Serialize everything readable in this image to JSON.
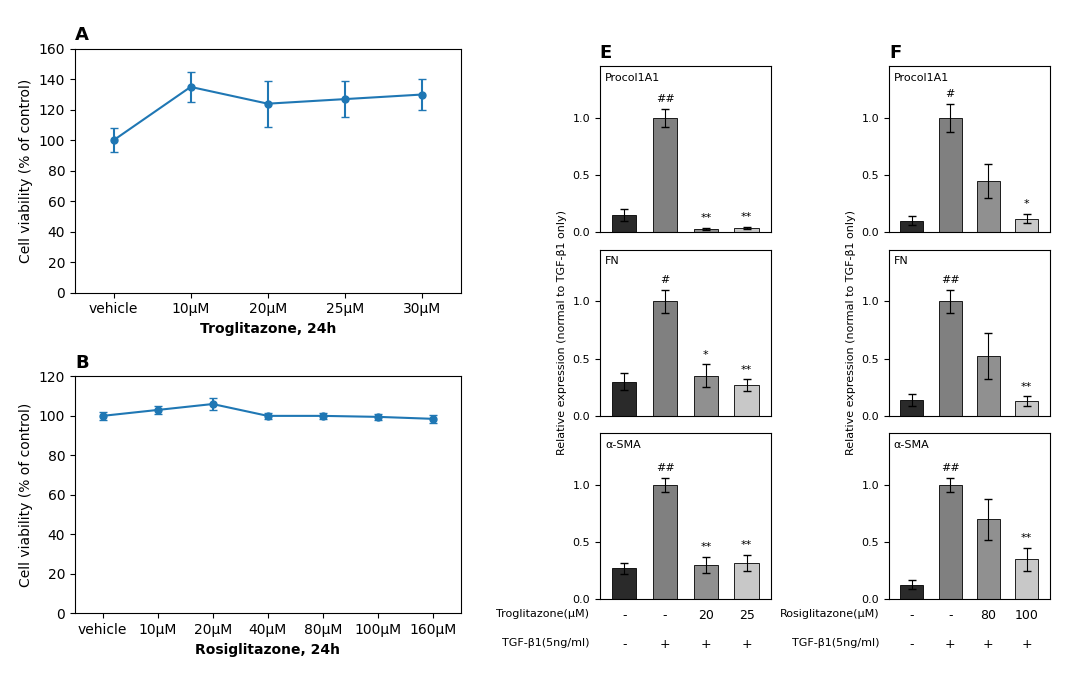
{
  "chart_data": [
    {
      "type": "line",
      "title": "A",
      "categories": [
        "vehicle",
        "10μM",
        "20μM",
        "25μM",
        "30μM"
      ],
      "values": [
        100,
        135,
        124,
        127,
        130
      ],
      "errors": [
        8,
        10,
        15,
        12,
        10
      ],
      "xlabel": "Troglitazone, 24h",
      "ylabel": "Cell viability (% of control)",
      "ylim": [
        0,
        160
      ],
      "yticks": [
        0,
        20,
        40,
        60,
        80,
        100,
        120,
        140,
        160
      ],
      "marker": "o",
      "line_style": "solid"
    },
    {
      "type": "line",
      "title": "B",
      "categories": [
        "vehicle",
        "10μM",
        "20μM",
        "40μM",
        "80μM",
        "100μM",
        "160μM"
      ],
      "values": [
        100,
        103,
        106,
        100,
        100,
        99.5,
        98.5
      ],
      "errors": [
        2,
        2,
        3,
        1.5,
        1.5,
        1.5,
        2
      ],
      "xlabel": "Rosiglitazone, 24h",
      "ylabel": "Cell viability (% of control)",
      "ylim": [
        0,
        120
      ],
      "yticks": [
        0,
        20,
        40,
        60,
        80,
        100,
        120
      ],
      "marker": "o",
      "line_style": "solid"
    },
    {
      "type": "bar",
      "title": "E",
      "subtitle": "Procol1A1",
      "categories": [
        null,
        null,
        null,
        null
      ],
      "values": [
        0.15,
        1.0,
        0.03,
        0.04
      ],
      "errors": [
        0.05,
        0.08,
        0.01,
        0.01
      ],
      "annotations": [
        null,
        "##",
        "**",
        "**"
      ],
      "colors": [
        "#2a2a2a",
        "#808080",
        "#909090",
        "#c8c8c8"
      ],
      "ylim": [
        0,
        1.45
      ],
      "yticks": [
        {
          "value": 0.0,
          "label": "0.0"
        },
        {
          "value": 0.5,
          "label": "0.5"
        },
        {
          "value": 1.0,
          "label": "1.0"
        }
      ]
    },
    {
      "type": "bar",
      "subtitle": "FN",
      "ylabel": "Relative expression (normal to TGF-β1 only)",
      "categories": [
        null,
        null,
        null,
        null
      ],
      "values": [
        0.3,
        1.0,
        0.35,
        0.27
      ],
      "errors": [
        0.07,
        0.1,
        0.1,
        0.05
      ],
      "annotations": [
        null,
        "#",
        "*",
        "**"
      ],
      "colors": [
        "#2a2a2a",
        "#808080",
        "#909090",
        "#c8c8c8"
      ],
      "ylim": [
        0,
        1.45
      ],
      "yticks": [
        {
          "value": 0.0,
          "label": "0.0"
        },
        {
          "value": 0.5,
          "label": "0.5"
        },
        {
          "value": 1.0,
          "label": "1.0"
        }
      ]
    },
    {
      "type": "bar",
      "subtitle": "α-SMA",
      "categories": [
        null,
        null,
        null,
        null
      ],
      "category_rows": [
        {
          "name": "Troglitazone(μM)",
          "labels": [
            "-",
            "-",
            "20",
            "25"
          ]
        },
        {
          "name": "TGF-β1(5ng/ml)",
          "labels": [
            "-",
            "+",
            "+",
            "+"
          ]
        }
      ],
      "values": [
        0.27,
        1.0,
        0.3,
        0.32
      ],
      "errors": [
        0.05,
        0.06,
        0.07,
        0.07
      ],
      "annotations": [
        null,
        "##",
        "**",
        "**"
      ],
      "colors": [
        "#2a2a2a",
        "#808080",
        "#909090",
        "#c8c8c8"
      ],
      "ylim": [
        0,
        1.45
      ],
      "yticks": [
        {
          "value": 0.0,
          "label": "0.0"
        },
        {
          "value": 0.5,
          "label": "0.5"
        },
        {
          "value": 1.0,
          "label": "1.0"
        }
      ]
    },
    {
      "type": "bar",
      "title": "F",
      "subtitle": "Procol1A1",
      "categories": [
        null,
        null,
        null,
        null
      ],
      "values": [
        0.1,
        1.0,
        0.45,
        0.12
      ],
      "errors": [
        0.04,
        0.12,
        0.15,
        0.04
      ],
      "annotations": [
        null,
        "#",
        null,
        "*"
      ],
      "colors": [
        "#2a2a2a",
        "#808080",
        "#909090",
        "#c8c8c8"
      ],
      "ylim": [
        0,
        1.45
      ],
      "yticks": [
        {
          "value": 0.0,
          "label": "0.0"
        },
        {
          "value": 0.5,
          "label": "0.5"
        },
        {
          "value": 1.0,
          "label": "1.0"
        }
      ]
    },
    {
      "type": "bar",
      "subtitle": "FN",
      "ylabel": "Relative expression (normal to TGF-β1 only)",
      "categories": [
        null,
        null,
        null,
        null
      ],
      "values": [
        0.14,
        1.0,
        0.52,
        0.13
      ],
      "errors": [
        0.05,
        0.1,
        0.2,
        0.04
      ],
      "annotations": [
        null,
        "##",
        null,
        "**"
      ],
      "colors": [
        "#2a2a2a",
        "#808080",
        "#909090",
        "#c8c8c8"
      ],
      "ylim": [
        0,
        1.45
      ],
      "yticks": [
        {
          "value": 0.0,
          "label": "0.0"
        },
        {
          "value": 0.5,
          "label": "0.5"
        },
        {
          "value": 1.0,
          "label": "1.0"
        }
      ]
    },
    {
      "type": "bar",
      "subtitle": "α-SMA",
      "categories": [
        null,
        null,
        null,
        null
      ],
      "category_rows": [
        {
          "name": "Rosiglitazone(μM)",
          "labels": [
            "-",
            "-",
            "80",
            "100"
          ]
        },
        {
          "name": "TGF-β1(5ng/ml)",
          "labels": [
            "-",
            "+",
            "+",
            "+"
          ]
        }
      ],
      "values": [
        0.13,
        1.0,
        0.7,
        0.35
      ],
      "errors": [
        0.04,
        0.06,
        0.18,
        0.1
      ],
      "annotations": [
        null,
        "##",
        null,
        "**"
      ],
      "colors": [
        "#2a2a2a",
        "#808080",
        "#909090",
        "#c8c8c8"
      ],
      "ylim": [
        0,
        1.45
      ],
      "yticks": [
        {
          "value": 0.0,
          "label": "0.0"
        },
        {
          "value": 0.5,
          "label": "0.5"
        },
        {
          "value": 1.0,
          "label": "1.0"
        }
      ]
    }
  ]
}
